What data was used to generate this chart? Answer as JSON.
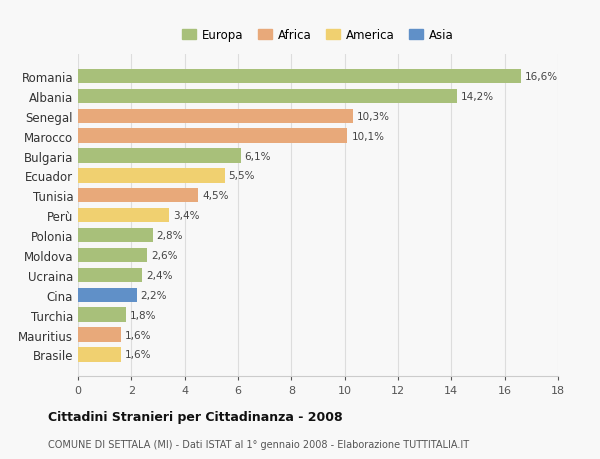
{
  "countries": [
    "Romania",
    "Albania",
    "Senegal",
    "Marocco",
    "Bulgaria",
    "Ecuador",
    "Tunisia",
    "Perù",
    "Polonia",
    "Moldova",
    "Ucraina",
    "Cina",
    "Turchia",
    "Mauritius",
    "Brasile"
  ],
  "values": [
    16.6,
    14.2,
    10.3,
    10.1,
    6.1,
    5.5,
    4.5,
    3.4,
    2.8,
    2.6,
    2.4,
    2.2,
    1.8,
    1.6,
    1.6
  ],
  "labels": [
    "16,6%",
    "14,2%",
    "10,3%",
    "10,1%",
    "6,1%",
    "5,5%",
    "4,5%",
    "3,4%",
    "2,8%",
    "2,6%",
    "2,4%",
    "2,2%",
    "1,8%",
    "1,6%",
    "1,6%"
  ],
  "continents": [
    "Europa",
    "Europa",
    "Africa",
    "Africa",
    "Europa",
    "America",
    "Africa",
    "America",
    "Europa",
    "Europa",
    "Europa",
    "Asia",
    "Europa",
    "Africa",
    "America"
  ],
  "colors": {
    "Europa": "#a8c07a",
    "Africa": "#e8a97a",
    "America": "#f0d070",
    "Asia": "#6090c8"
  },
  "legend_labels": [
    "Europa",
    "Africa",
    "America",
    "Asia"
  ],
  "legend_colors": [
    "#a8c07a",
    "#e8a97a",
    "#f0d070",
    "#6090c8"
  ],
  "title": "Cittadini Stranieri per Cittadinanza - 2008",
  "subtitle": "COMUNE DI SETTALA (MI) - Dati ISTAT al 1° gennaio 2008 - Elaborazione TUTTITALIA.IT",
  "xlim": [
    0,
    18
  ],
  "xticks": [
    0,
    2,
    4,
    6,
    8,
    10,
    12,
    14,
    16,
    18
  ],
  "bg_color": "#f8f8f8",
  "grid_color": "#dddddd"
}
